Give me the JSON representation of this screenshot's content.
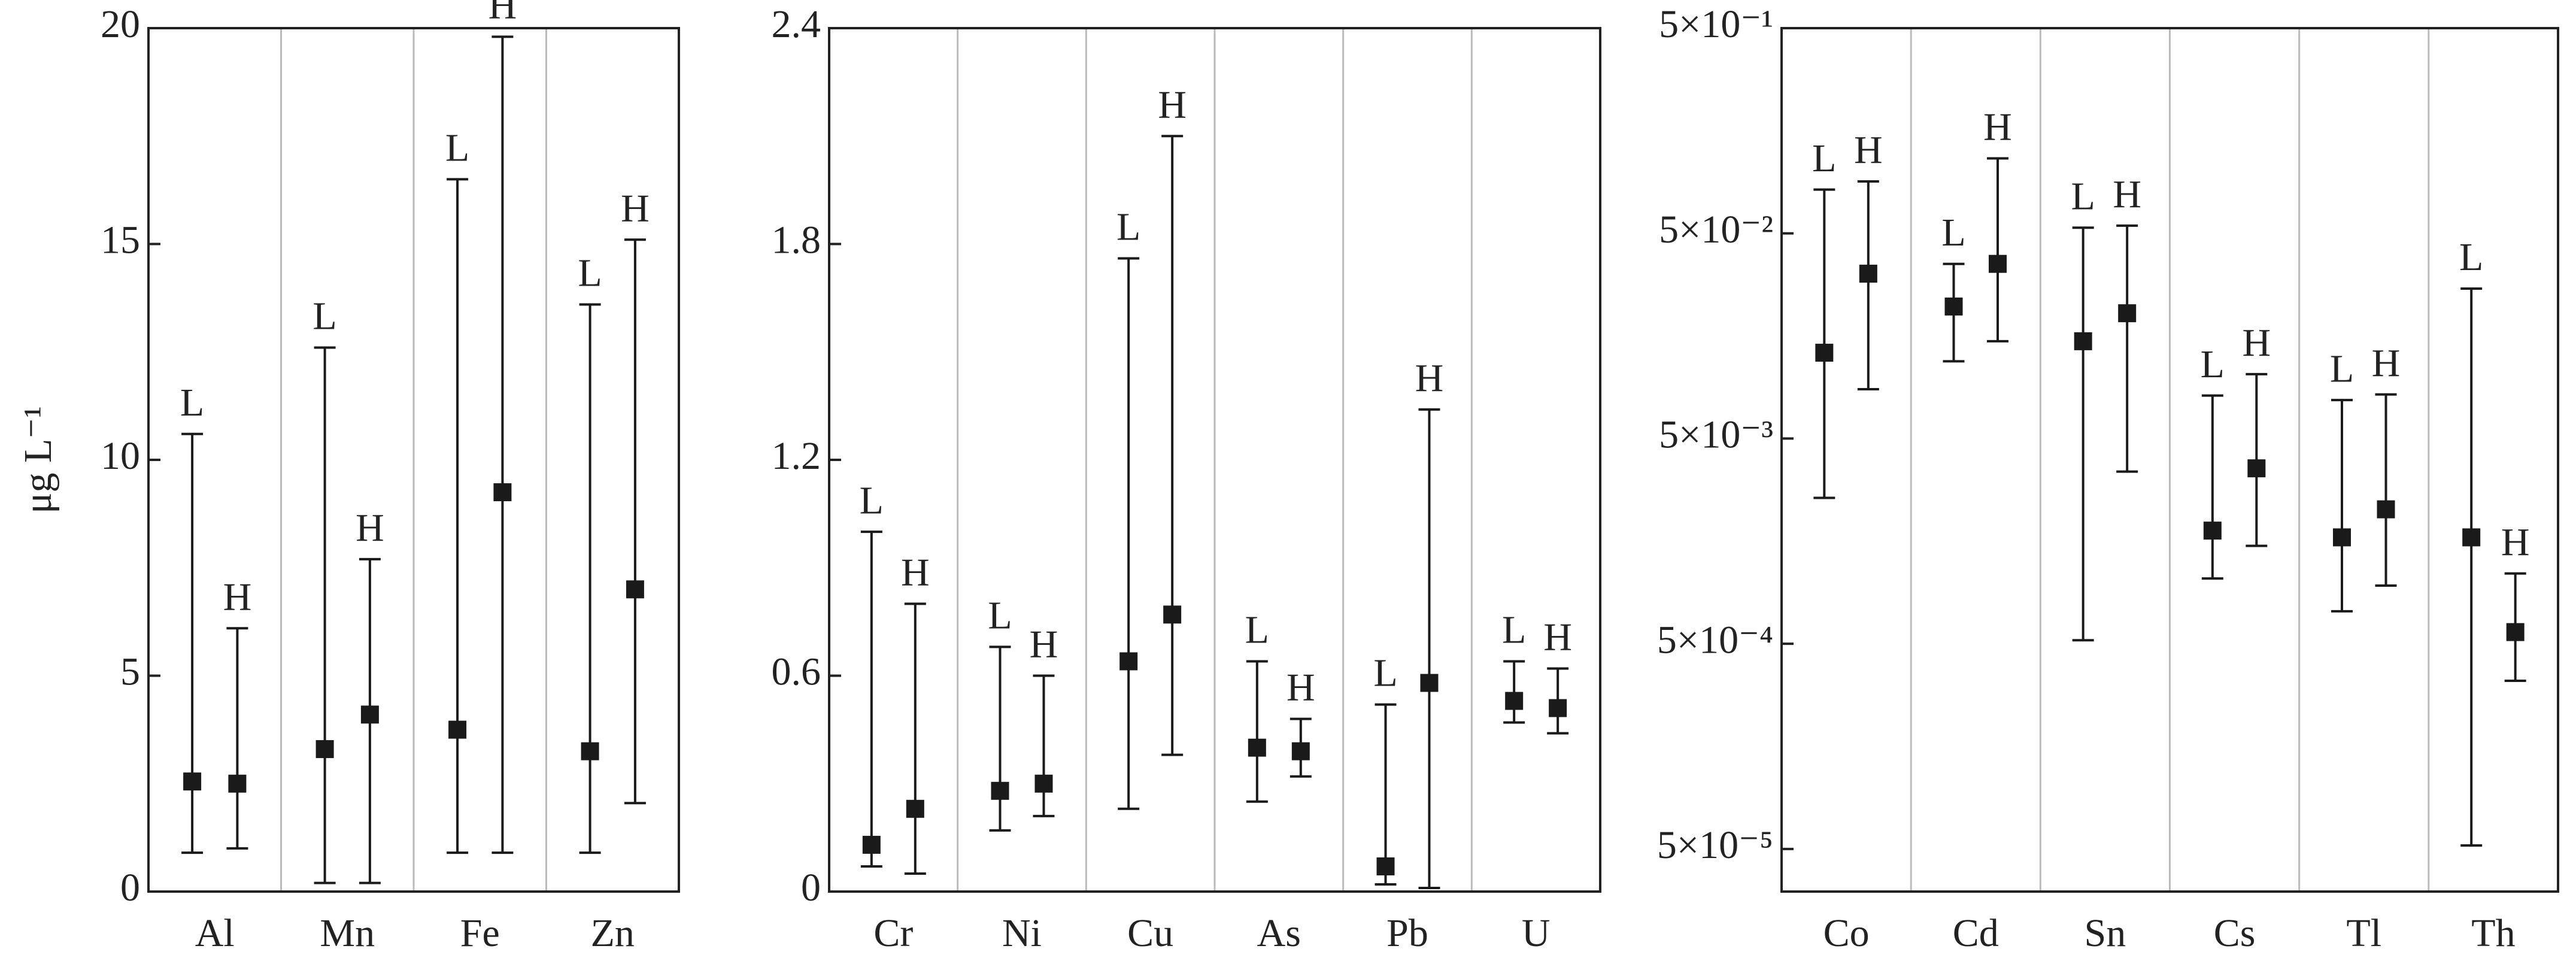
{
  "chart_data": [
    {
      "type": "errorbar",
      "y_label": "μg L⁻¹",
      "log_scale": false,
      "categories": [
        "Al",
        "Mn",
        "Fe",
        "Zn"
      ],
      "ylim": [
        0,
        20
      ],
      "yticks": [
        0,
        5,
        10,
        15,
        20
      ],
      "series": [
        {
          "name": "L",
          "color": "#1a1a1a",
          "values": [
            2.55,
            3.3,
            3.75,
            3.25
          ],
          "low": [
            0.9,
            0.2,
            0.9,
            0.9
          ],
          "high": [
            10.6,
            12.6,
            16.5,
            13.6
          ]
        },
        {
          "name": "H",
          "color": "#1a1a1a",
          "values": [
            2.5,
            4.1,
            9.25,
            7.0
          ],
          "low": [
            1.0,
            0.2,
            0.9,
            2.05
          ],
          "high": [
            6.1,
            7.7,
            19.8,
            15.1
          ]
        }
      ]
    },
    {
      "type": "errorbar",
      "log_scale": false,
      "categories": [
        "Cr",
        "Ni",
        "Cu",
        "As",
        "Pb",
        "U"
      ],
      "ylim": [
        0,
        2.4
      ],
      "yticks": [
        0,
        0.6,
        1.2,
        1.8,
        2.4
      ],
      "series": [
        {
          "name": "L",
          "color": "#1a1a1a",
          "values": [
            0.13,
            0.28,
            0.64,
            0.4,
            0.07,
            0.53
          ],
          "low": [
            0.07,
            0.17,
            0.23,
            0.25,
            0.02,
            0.47
          ],
          "high": [
            1.0,
            0.68,
            1.76,
            0.64,
            0.52,
            0.64
          ]
        },
        {
          "name": "H",
          "color": "#1a1a1a",
          "values": [
            0.23,
            0.3,
            0.77,
            0.39,
            0.58,
            0.51
          ],
          "low": [
            0.05,
            0.21,
            0.38,
            0.32,
            0.01,
            0.44
          ],
          "high": [
            0.8,
            0.6,
            2.1,
            0.48,
            1.34,
            0.62
          ]
        }
      ]
    },
    {
      "type": "errorbar",
      "log_scale": true,
      "categories": [
        "Co",
        "Cd",
        "Sn",
        "Cs",
        "Tl",
        "Th"
      ],
      "ylim": [
        3.1e-05,
        0.5
      ],
      "yticks": [
        {
          "value": 0.5,
          "label": "5×10⁻¹"
        },
        {
          "value": 0.05,
          "label": "5×10⁻²"
        },
        {
          "value": 0.005,
          "label": "5×10⁻³"
        },
        {
          "value": 0.0005,
          "label": "5×10⁻⁴"
        },
        {
          "value": 5e-05,
          "label": "5×10⁻⁵"
        }
      ],
      "series": [
        {
          "name": "L",
          "color": "#1a1a1a",
          "values": [
            0.0131,
            0.022,
            0.0149,
            0.00178,
            0.00165,
            0.00165
          ],
          "low": [
            0.00257,
            0.0119,
            0.00052,
            0.00104,
            0.00072,
            5.2e-05
          ],
          "high": [
            0.0817,
            0.0355,
            0.0533,
            0.0081,
            0.0077,
            0.0269
          ]
        },
        {
          "name": "H",
          "color": "#1a1a1a",
          "values": [
            0.0318,
            0.0355,
            0.0204,
            0.00358,
            0.00226,
            0.00057
          ],
          "low": [
            0.0087,
            0.0149,
            0.00345,
            0.0015,
            0.00096,
            0.00033
          ],
          "high": [
            0.0895,
            0.116,
            0.0545,
            0.0103,
            0.0082,
            0.0011
          ]
        }
      ]
    }
  ]
}
